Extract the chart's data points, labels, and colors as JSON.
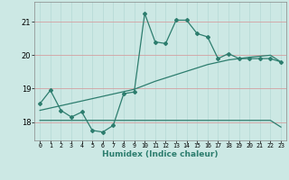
{
  "title": "",
  "xlabel": "Humidex (Indice chaleur)",
  "bg_color": "#cce8e4",
  "line_color": "#2d7d6e",
  "grid_color_v": "#b8dbd7",
  "grid_color_h": "#d4a0a0",
  "x_ticks": [
    0,
    1,
    2,
    3,
    4,
    5,
    6,
    7,
    8,
    9,
    10,
    11,
    12,
    13,
    14,
    15,
    16,
    17,
    18,
    19,
    20,
    21,
    22,
    23
  ],
  "y_ticks": [
    18,
    19,
    20,
    21
  ],
  "ylim": [
    17.45,
    21.6
  ],
  "xlim": [
    -0.5,
    23.5
  ],
  "line1_x": [
    0,
    1,
    2,
    3,
    4,
    5,
    6,
    7,
    8,
    9,
    10,
    11,
    12,
    13,
    14,
    15,
    16,
    17,
    18,
    19,
    20,
    21,
    22,
    23
  ],
  "line1_y": [
    18.55,
    18.95,
    18.35,
    18.15,
    18.3,
    17.75,
    17.7,
    17.9,
    18.85,
    18.9,
    21.25,
    20.4,
    20.35,
    21.05,
    21.05,
    20.65,
    20.55,
    19.9,
    20.05,
    19.9,
    19.9,
    19.9,
    19.9,
    19.8
  ],
  "line2_x": [
    0,
    1,
    2,
    3,
    4,
    5,
    6,
    7,
    8,
    9,
    10,
    11,
    12,
    13,
    14,
    15,
    16,
    17,
    18,
    19,
    20,
    21,
    22,
    23
  ],
  "line2_y": [
    18.35,
    18.42,
    18.49,
    18.56,
    18.63,
    18.7,
    18.77,
    18.84,
    18.91,
    18.98,
    19.1,
    19.22,
    19.32,
    19.42,
    19.52,
    19.62,
    19.72,
    19.79,
    19.86,
    19.9,
    19.94,
    19.97,
    20.0,
    19.8
  ],
  "line3_x": [
    0,
    1,
    2,
    3,
    4,
    5,
    6,
    7,
    8,
    9,
    10,
    11,
    12,
    13,
    14,
    15,
    16,
    17,
    18,
    19,
    20,
    21,
    22,
    23
  ],
  "line3_y": [
    18.05,
    18.05,
    18.05,
    18.05,
    18.05,
    18.05,
    18.05,
    18.05,
    18.05,
    18.05,
    18.05,
    18.05,
    18.05,
    18.05,
    18.05,
    18.05,
    18.05,
    18.05,
    18.05,
    18.05,
    18.05,
    18.05,
    18.05,
    17.85
  ],
  "marker": "D",
  "markersize": 2,
  "linewidth": 0.9
}
